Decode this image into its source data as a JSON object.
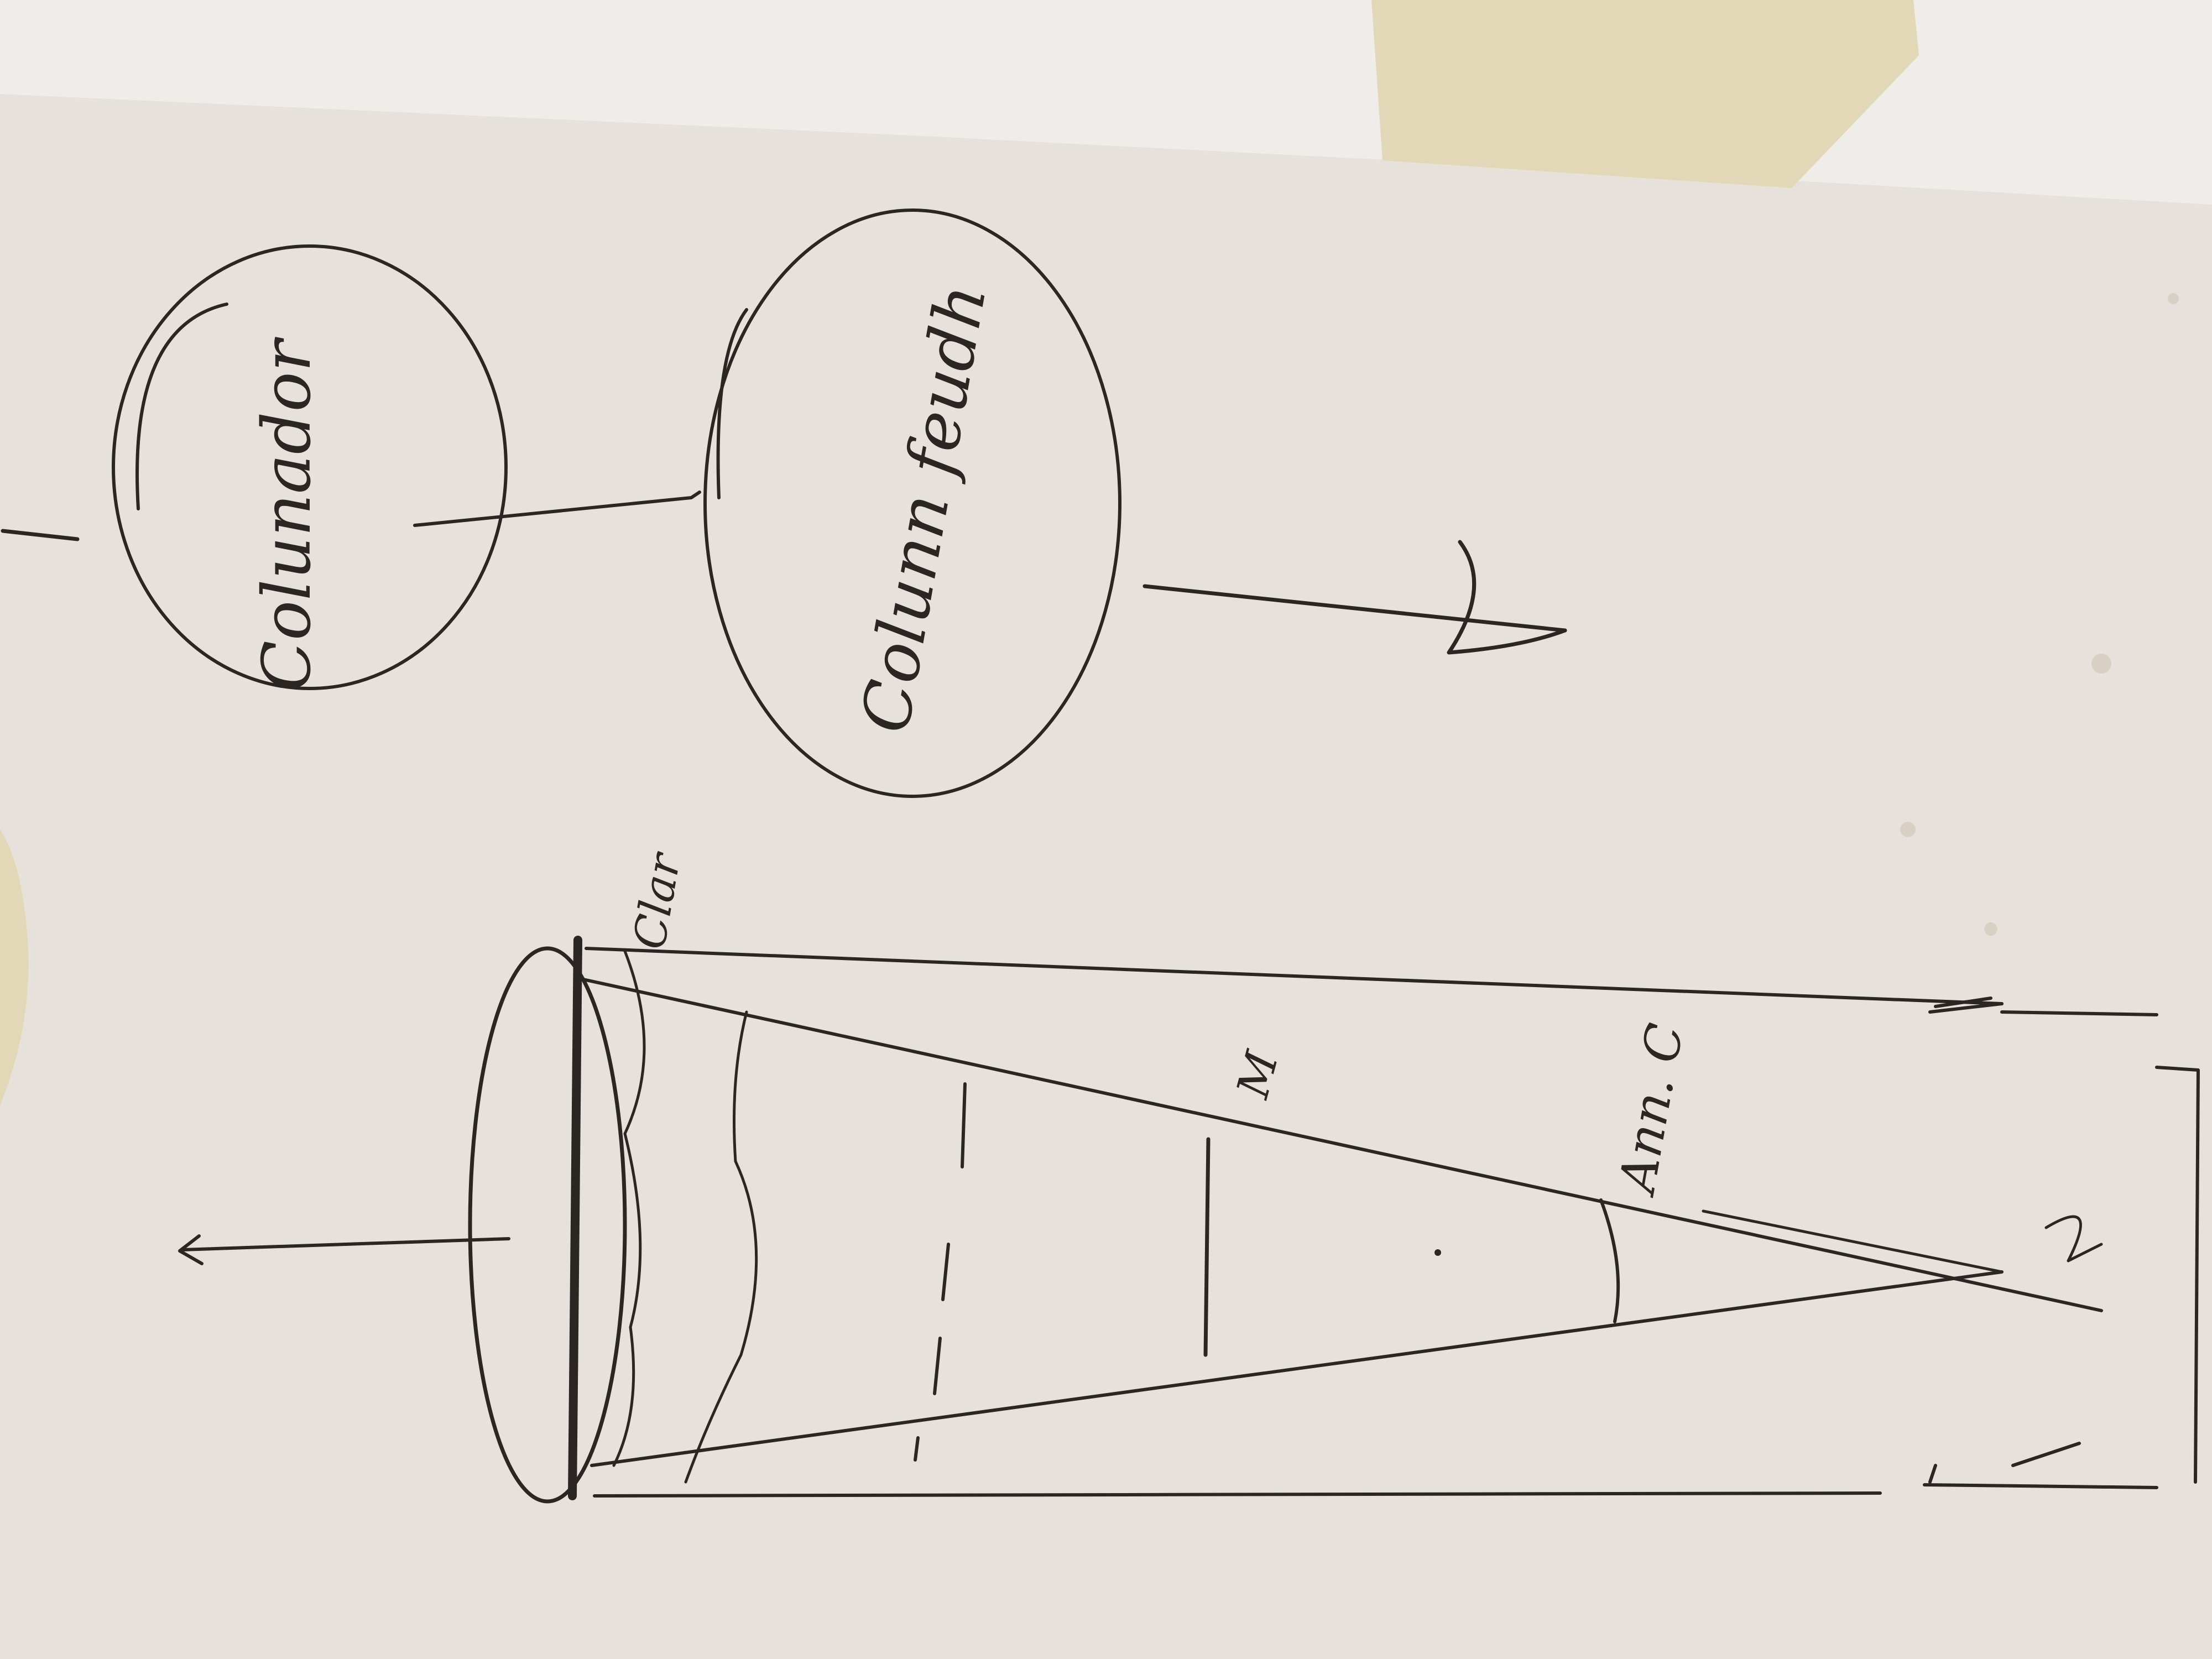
{
  "labels": {
    "circle_top": "Colunador",
    "circle_bottom": "Colunn feudh",
    "cone_top_note": "Clar",
    "cone_mid_note": "M",
    "angle_note": "Ann. C"
  },
  "colors": {
    "paper": "#e6e1da",
    "wall": "#efede9",
    "tape": "#e2d8b8",
    "ink": "#2a2624"
  }
}
